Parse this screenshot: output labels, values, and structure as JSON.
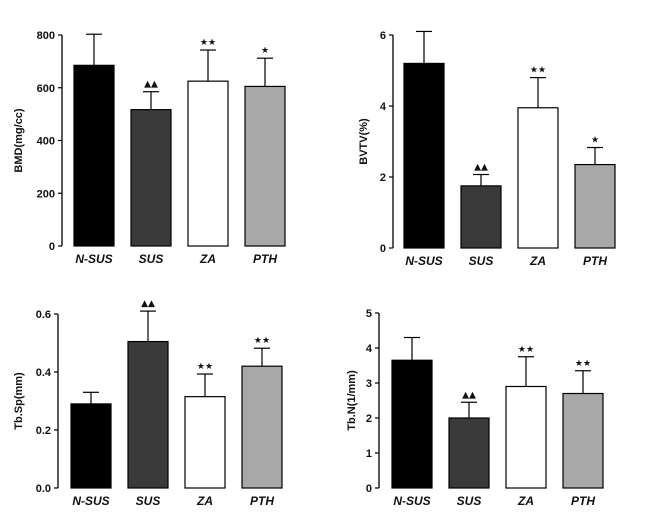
{
  "chart_data": [
    {
      "type": "bar",
      "categories": [
        "N-SUS",
        "SUS",
        "ZA",
        "PTH"
      ],
      "ylabel": "BMD(mg/cc)",
      "ylim": [
        0,
        800
      ],
      "yticks": [
        "0",
        "200",
        "400",
        "600",
        "800"
      ],
      "values": [
        685,
        517,
        625,
        605
      ],
      "errors": [
        118,
        68,
        118,
        107
      ],
      "markers": [
        "",
        "▲▲",
        "★★",
        "★"
      ],
      "colors": [
        "#000000",
        "#3a3a3a",
        "#ffffff",
        "#a8a8a8"
      ]
    },
    {
      "type": "bar",
      "categories": [
        "N-SUS",
        "SUS",
        "ZA",
        "PTH"
      ],
      "ylabel": "BVTV(%)",
      "ylim": [
        0,
        6
      ],
      "yticks": [
        "0",
        "2",
        "4",
        "6"
      ],
      "values": [
        5.2,
        1.75,
        3.95,
        2.35
      ],
      "errors": [
        0.9,
        0.32,
        0.85,
        0.48
      ],
      "markers": [
        "",
        "▲▲",
        "★★",
        "★"
      ],
      "colors": [
        "#000000",
        "#3a3a3a",
        "#ffffff",
        "#a8a8a8"
      ]
    },
    {
      "type": "bar",
      "categories": [
        "N-SUS",
        "SUS",
        "ZA",
        "PTH"
      ],
      "ylabel": "Tb.Sp(mm)",
      "ylim": [
        0,
        0.6
      ],
      "yticks": [
        "0.0",
        "0.2",
        "0.4",
        "0.6"
      ],
      "values": [
        0.29,
        0.505,
        0.315,
        0.42
      ],
      "errors": [
        0.04,
        0.105,
        0.078,
        0.062
      ],
      "markers": [
        "",
        "▲▲",
        "★★",
        "★★"
      ],
      "colors": [
        "#000000",
        "#3a3a3a",
        "#ffffff",
        "#a8a8a8"
      ]
    },
    {
      "type": "bar",
      "categories": [
        "N-SUS",
        "SUS",
        "ZA",
        "PTH"
      ],
      "ylabel": "Tb.N(1/mm)",
      "ylim": [
        0,
        5
      ],
      "yticks": [
        "0",
        "1",
        "2",
        "3",
        "4",
        "5"
      ],
      "values": [
        3.65,
        2.0,
        2.9,
        2.7
      ],
      "errors": [
        0.65,
        0.45,
        0.85,
        0.65
      ],
      "markers": [
        "",
        "▲▲",
        "★★",
        "★★"
      ],
      "colors": [
        "#000000",
        "#3a3a3a",
        "#ffffff",
        "#a8a8a8"
      ]
    }
  ]
}
